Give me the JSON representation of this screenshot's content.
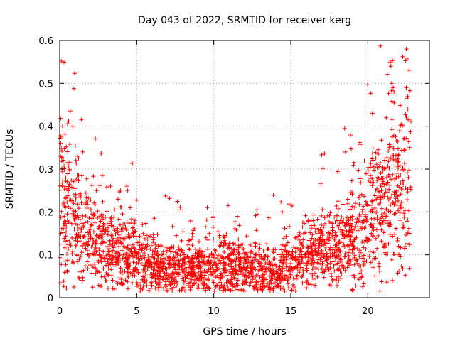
{
  "chart_data": {
    "type": "scatter",
    "title": "Day 043 of 2022, SRMTID for receiver kerg",
    "xlabel": "GPS time / hours",
    "ylabel": "SRMTID / TECUs",
    "xlim": [
      0,
      24
    ],
    "ylim": [
      0,
      0.6
    ],
    "xticks": [
      0,
      5,
      10,
      15,
      20
    ],
    "yticks": [
      0,
      0.1,
      0.2,
      0.3,
      0.4,
      0.5,
      0.6
    ],
    "xtick_labels": [
      "0",
      "5",
      "10",
      "15",
      "20"
    ],
    "ytick_labels": [
      "0",
      "0.1",
      "0.2",
      "0.3",
      "0.4",
      "0.5",
      "0.6"
    ],
    "grid": true,
    "marker": "+",
    "series_color": "#ff0000",
    "x_data_extent": [
      0,
      22.8
    ],
    "profile_note": "approximate trend read from dense point cloud (hours, TECU)",
    "trend": [
      {
        "x": 0,
        "y": 0.22
      },
      {
        "x": 1,
        "y": 0.18
      },
      {
        "x": 2,
        "y": 0.14
      },
      {
        "x": 3,
        "y": 0.12
      },
      {
        "x": 4,
        "y": 0.11
      },
      {
        "x": 5,
        "y": 0.09
      },
      {
        "x": 6,
        "y": 0.075
      },
      {
        "x": 7,
        "y": 0.065
      },
      {
        "x": 8,
        "y": 0.07
      },
      {
        "x": 9,
        "y": 0.075
      },
      {
        "x": 10,
        "y": 0.07
      },
      {
        "x": 11,
        "y": 0.07
      },
      {
        "x": 12,
        "y": 0.075
      },
      {
        "x": 13,
        "y": 0.06
      },
      {
        "x": 14,
        "y": 0.055
      },
      {
        "x": 15,
        "y": 0.08
      },
      {
        "x": 16,
        "y": 0.1
      },
      {
        "x": 17,
        "y": 0.115
      },
      {
        "x": 18,
        "y": 0.12
      },
      {
        "x": 19,
        "y": 0.13
      },
      {
        "x": 20,
        "y": 0.17
      },
      {
        "x": 21,
        "y": 0.22
      },
      {
        "x": 22,
        "y": 0.25
      },
      {
        "x": 22.8,
        "y": 0.26
      }
    ],
    "spread": [
      {
        "x": 0,
        "y": 0.1
      },
      {
        "x": 2,
        "y": 0.06
      },
      {
        "x": 4,
        "y": 0.05
      },
      {
        "x": 6,
        "y": 0.035
      },
      {
        "x": 10,
        "y": 0.035
      },
      {
        "x": 14,
        "y": 0.035
      },
      {
        "x": 17,
        "y": 0.045
      },
      {
        "x": 19,
        "y": 0.06
      },
      {
        "x": 21,
        "y": 0.1
      },
      {
        "x": 22.8,
        "y": 0.12
      }
    ],
    "point_count": 2600,
    "notable_points": [
      {
        "x": 0.02,
        "y": 0.372
      },
      {
        "x": 0.05,
        "y": 0.33
      },
      {
        "x": 0.85,
        "y": 0.4
      },
      {
        "x": 1.5,
        "y": 0.34
      },
      {
        "x": 3.3,
        "y": 0.26
      },
      {
        "x": 4.35,
        "y": 0.26
      },
      {
        "x": 4.4,
        "y": 0.25
      },
      {
        "x": 12.8,
        "y": 0.205
      },
      {
        "x": 12.82,
        "y": 0.195
      },
      {
        "x": 14.45,
        "y": 0.2
      },
      {
        "x": 18.5,
        "y": 0.395
      },
      {
        "x": 18.55,
        "y": 0.34
      },
      {
        "x": 20.2,
        "y": 0.477
      },
      {
        "x": 20.3,
        "y": 0.43
      },
      {
        "x": 21.45,
        "y": 0.55
      },
      {
        "x": 21.5,
        "y": 0.54
      },
      {
        "x": 21.6,
        "y": 0.553
      },
      {
        "x": 21.55,
        "y": 0.5
      },
      {
        "x": 21.65,
        "y": 0.49
      },
      {
        "x": 21.7,
        "y": 0.48
      },
      {
        "x": 21.6,
        "y": 0.04
      },
      {
        "x": 22.5,
        "y": 0.58
      },
      {
        "x": 22.45,
        "y": 0.553
      },
      {
        "x": 22.55,
        "y": 0.557
      },
      {
        "x": 22.5,
        "y": 0.49
      },
      {
        "x": 22.55,
        "y": 0.465
      },
      {
        "x": 22.6,
        "y": 0.44
      },
      {
        "x": 22.7,
        "y": 0.15
      },
      {
        "x": 1.05,
        "y": 0.32
      },
      {
        "x": 0.5,
        "y": 0.06
      },
      {
        "x": 7.2,
        "y": 0.03
      },
      {
        "x": 13.8,
        "y": 0.02
      }
    ]
  }
}
